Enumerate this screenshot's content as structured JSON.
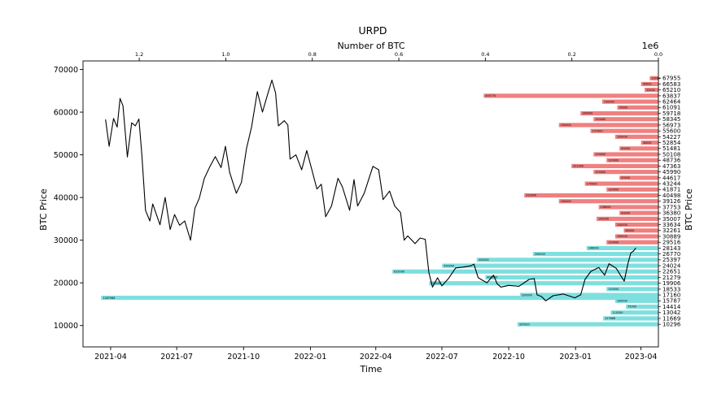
{
  "chart_data": {
    "type": "line",
    "title": "URPD",
    "xlabel": "Time",
    "ylabel": "BTC Price",
    "ylabel_right": "BTC Price",
    "top_xlabel": "Number of BTC",
    "top_x_exponent": "1e6",
    "ylim": [
      5000,
      72000
    ],
    "xlim": [
      "2021-02-22",
      "2023-04-25"
    ],
    "top_xlim": [
      1.33,
      0.0
    ],
    "y_ticks": [
      "10000",
      "20000",
      "30000",
      "40000",
      "50000",
      "60000",
      "70000"
    ],
    "x_ticks": [
      "2021-04",
      "2021-07",
      "2021-10",
      "2022-01",
      "2022-04",
      "2022-07",
      "2022-10",
      "2023-01",
      "2023-04"
    ],
    "top_x_ticks": [
      "1.2",
      "1.0",
      "0.8",
      "0.6",
      "0.4",
      "0.2",
      "0.0"
    ],
    "price_series": {
      "name": "BTC price",
      "color": "#000000",
      "points": [
        [
          "2021-03-25",
          58300
        ],
        [
          "2021-03-30",
          52000
        ],
        [
          "2021-04-05",
          58500
        ],
        [
          "2021-04-10",
          56500
        ],
        [
          "2021-04-14",
          63200
        ],
        [
          "2021-04-18",
          61500
        ],
        [
          "2021-04-24",
          49500
        ],
        [
          "2021-04-30",
          57500
        ],
        [
          "2021-05-05",
          56800
        ],
        [
          "2021-05-10",
          58400
        ],
        [
          "2021-05-14",
          50000
        ],
        [
          "2021-05-19",
          37000
        ],
        [
          "2021-05-25",
          34500
        ],
        [
          "2021-05-29",
          38500
        ],
        [
          "2021-06-03",
          36000
        ],
        [
          "2021-06-08",
          33600
        ],
        [
          "2021-06-15",
          40000
        ],
        [
          "2021-06-22",
          32500
        ],
        [
          "2021-06-28",
          36000
        ],
        [
          "2021-07-05",
          33500
        ],
        [
          "2021-07-12",
          34500
        ],
        [
          "2021-07-20",
          30000
        ],
        [
          "2021-07-26",
          37500
        ],
        [
          "2021-08-01",
          39800
        ],
        [
          "2021-08-08",
          44500
        ],
        [
          "2021-08-15",
          47000
        ],
        [
          "2021-08-23",
          49600
        ],
        [
          "2021-08-31",
          47000
        ],
        [
          "2021-09-06",
          52000
        ],
        [
          "2021-09-12",
          45800
        ],
        [
          "2021-09-21",
          41000
        ],
        [
          "2021-09-28",
          43500
        ],
        [
          "2021-10-05",
          51500
        ],
        [
          "2021-10-12",
          56500
        ],
        [
          "2021-10-20",
          64800
        ],
        [
          "2021-10-27",
          60000
        ],
        [
          "2021-11-02",
          63500
        ],
        [
          "2021-11-09",
          67500
        ],
        [
          "2021-11-14",
          64500
        ],
        [
          "2021-11-18",
          56800
        ],
        [
          "2021-11-26",
          58000
        ],
        [
          "2021-12-01",
          57000
        ],
        [
          "2021-12-04",
          49000
        ],
        [
          "2021-12-12",
          50000
        ],
        [
          "2021-12-20",
          46500
        ],
        [
          "2021-12-27",
          51000
        ],
        [
          "2022-01-03",
          46500
        ],
        [
          "2022-01-10",
          42000
        ],
        [
          "2022-01-16",
          43100
        ],
        [
          "2022-01-22",
          35500
        ],
        [
          "2022-01-30",
          38000
        ],
        [
          "2022-02-08",
          44500
        ],
        [
          "2022-02-14",
          42500
        ],
        [
          "2022-02-24",
          37000
        ],
        [
          "2022-03-02",
          44200
        ],
        [
          "2022-03-07",
          38000
        ],
        [
          "2022-03-16",
          41000
        ],
        [
          "2022-03-28",
          47300
        ],
        [
          "2022-04-05",
          46500
        ],
        [
          "2022-04-11",
          39500
        ],
        [
          "2022-04-20",
          41500
        ],
        [
          "2022-04-27",
          38000
        ],
        [
          "2022-05-05",
          36500
        ],
        [
          "2022-05-10",
          30000
        ],
        [
          "2022-05-15",
          31000
        ],
        [
          "2022-05-25",
          29200
        ],
        [
          "2022-06-01",
          30500
        ],
        [
          "2022-06-08",
          30200
        ],
        [
          "2022-06-13",
          22500
        ],
        [
          "2022-06-18",
          19000
        ],
        [
          "2022-06-25",
          21200
        ],
        [
          "2022-07-01",
          19300
        ],
        [
          "2022-07-10",
          21000
        ],
        [
          "2022-07-20",
          23500
        ],
        [
          "2022-07-30",
          23700
        ],
        [
          "2022-08-10",
          24000
        ],
        [
          "2022-08-14",
          24400
        ],
        [
          "2022-08-20",
          21200
        ],
        [
          "2022-09-01",
          20000
        ],
        [
          "2022-09-10",
          21800
        ],
        [
          "2022-09-15",
          19800
        ],
        [
          "2022-09-20",
          19000
        ],
        [
          "2022-10-01",
          19400
        ],
        [
          "2022-10-15",
          19200
        ],
        [
          "2022-10-29",
          20800
        ],
        [
          "2022-11-05",
          21000
        ],
        [
          "2022-11-09",
          17200
        ],
        [
          "2022-11-15",
          16800
        ],
        [
          "2022-11-21",
          15800
        ],
        [
          "2022-12-01",
          17000
        ],
        [
          "2022-12-15",
          17400
        ],
        [
          "2022-12-31",
          16500
        ],
        [
          "2023-01-08",
          17200
        ],
        [
          "2023-01-14",
          20800
        ],
        [
          "2023-01-22",
          22700
        ],
        [
          "2023-02-02",
          23600
        ],
        [
          "2023-02-10",
          21800
        ],
        [
          "2023-02-16",
          24500
        ],
        [
          "2023-02-26",
          23400
        ],
        [
          "2023-03-09",
          20400
        ],
        [
          "2023-03-14",
          24500
        ],
        [
          "2023-03-18",
          27000
        ],
        [
          "2023-03-22",
          27500
        ],
        [
          "2023-03-25",
          28200
        ]
      ]
    },
    "urpd_series": {
      "name": "URPD",
      "color_above_price": "#f08080",
      "color_below_price": "#7fdfdf",
      "current_price": 28143,
      "buckets": [
        {
          "price": 10296,
          "btc": 325920,
          "label": "325920"
        },
        {
          "price": 11669,
          "btc": 127888,
          "label": "127888"
        },
        {
          "price": 13042,
          "btc": 110200,
          "label": "110200"
        },
        {
          "price": 14414,
          "btc": 75000,
          "label": "75000"
        },
        {
          "price": 15787,
          "btc": 100000,
          "label": "100000"
        },
        {
          "price": 16500,
          "btc": 1287988,
          "label": "1287988"
        },
        {
          "price": 17160,
          "btc": 320000,
          "label": "320000"
        },
        {
          "price": 18533,
          "btc": 120000,
          "label": "120000"
        },
        {
          "price": 19906,
          "btc": 530000,
          "label": "530000"
        },
        {
          "price": 21279,
          "btc": 400000,
          "label": "400000"
        },
        {
          "price": 22651,
          "btc": 615000,
          "label": "615000"
        },
        {
          "price": 24024,
          "btc": 500000,
          "label": "500000"
        },
        {
          "price": 25397,
          "btc": 420000,
          "label": "420000"
        },
        {
          "price": 26770,
          "btc": 290000,
          "label": "290000"
        },
        {
          "price": 28143,
          "btc": 166000,
          "label": "166000"
        },
        {
          "price": 29516,
          "btc": 120000,
          "label": "120000"
        },
        {
          "price": 30889,
          "btc": 100000,
          "label": "100000"
        },
        {
          "price": 32261,
          "btc": 80000,
          "label": "80000"
        },
        {
          "price": 33634,
          "btc": 100000,
          "label": "100000"
        },
        {
          "price": 35007,
          "btc": 143000,
          "label": "143000"
        },
        {
          "price": 36380,
          "btc": 90000,
          "label": "90000"
        },
        {
          "price": 37753,
          "btc": 138000,
          "label": "138000"
        },
        {
          "price": 39126,
          "btc": 230000,
          "label": "230000"
        },
        {
          "price": 40498,
          "btc": 310000,
          "label": "310000"
        },
        {
          "price": 41871,
          "btc": 120000,
          "label": "120000"
        },
        {
          "price": 43244,
          "btc": 170000,
          "label": "170000"
        },
        {
          "price": 44617,
          "btc": 90000,
          "label": "90000"
        },
        {
          "price": 45990,
          "btc": 150000,
          "label": "150000"
        },
        {
          "price": 47363,
          "btc": 201000,
          "label": "201000"
        },
        {
          "price": 48736,
          "btc": 120000,
          "label": "120000"
        },
        {
          "price": 50108,
          "btc": 150000,
          "label": "150000"
        },
        {
          "price": 51481,
          "btc": 90000,
          "label": "90000"
        },
        {
          "price": 52854,
          "btc": 40000,
          "label": "40000"
        },
        {
          "price": 54227,
          "btc": 100000,
          "label": "100000"
        },
        {
          "price": 55600,
          "btc": 157000,
          "label": "157000"
        },
        {
          "price": 56973,
          "btc": 230000,
          "label": "230000"
        },
        {
          "price": 58345,
          "btc": 150000,
          "label": "150000"
        },
        {
          "price": 59718,
          "btc": 180000,
          "label": "180000"
        },
        {
          "price": 61091,
          "btc": 95000,
          "label": "95000"
        },
        {
          "price": 62464,
          "btc": 130000,
          "label": "130000"
        },
        {
          "price": 63837,
          "btc": 403770,
          "label": "403770"
        },
        {
          "price": 65210,
          "btc": 32000,
          "label": "32000"
        },
        {
          "price": 66583,
          "btc": 40000,
          "label": "40000"
        },
        {
          "price": 67955,
          "btc": 20000,
          "label": "20000"
        }
      ]
    },
    "right_y_ticks": [
      "67955",
      "66583",
      "65210",
      "63837",
      "62464",
      "61091",
      "59718",
      "58345",
      "56973",
      "55600",
      "54227",
      "52854",
      "51481",
      "50108",
      "48736",
      "47363",
      "45990",
      "44617",
      "43244",
      "41871",
      "40498",
      "39126",
      "37753",
      "36380",
      "35007",
      "33634",
      "32261",
      "30889",
      "29516",
      "28143",
      "26770",
      "25397",
      "24024",
      "22651",
      "21279",
      "19906",
      "18533",
      "17160",
      "15787",
      "14414",
      "13042",
      "11669",
      "10296"
    ],
    "grid": false,
    "legend": "none"
  }
}
